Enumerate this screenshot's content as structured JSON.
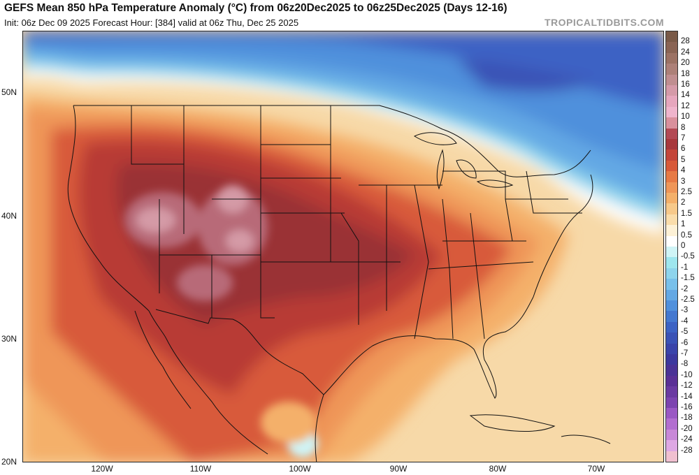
{
  "header": {
    "title": "GEFS Mean 850 hPa Temperature Anomaly (°C) from 06z20Dec2025 to 06z25Dec2025 (Days 12-16)",
    "subtitle": "Init: 06z Dec 09 2025   Forecast Hour: [384]   valid at 06z Thu, Dec 25 2025",
    "brand": "TROPICALTIDBITS.COM"
  },
  "axes": {
    "lat_labels": [
      "50N",
      "40N",
      "30N",
      "20N"
    ],
    "lon_labels": [
      "120W",
      "110W",
      "100W",
      "90W",
      "80W",
      "70W"
    ]
  },
  "colorbar": {
    "labels": [
      "28",
      "24",
      "20",
      "18",
      "16",
      "14",
      "12",
      "10",
      "8",
      "7",
      "6",
      "5",
      "4",
      "3",
      "2.5",
      "2",
      "1.5",
      "1",
      "0.5",
      "0",
      "-0.5",
      "-1",
      "-1.5",
      "-2",
      "-2.5",
      "-3",
      "-4",
      "-5",
      "-6",
      "-7",
      "-8",
      "-10",
      "-12",
      "-14",
      "-16",
      "-18",
      "-20",
      "-24",
      "-28"
    ],
    "colors": [
      "#7a5a48",
      "#8a6454",
      "#9c7264",
      "#ad8078",
      "#c08e90",
      "#d59aa8",
      "#e6a6bd",
      "#efb4cc",
      "#d9909c",
      "#b34a54",
      "#a8383c",
      "#c4463a",
      "#d85a3a",
      "#e77a45",
      "#ef9658",
      "#f4b06a",
      "#f7c98a",
      "#faddab",
      "#fdf1d6",
      "#ffffff",
      "#cff4f6",
      "#9ee6ee",
      "#8ed4ec",
      "#78c0ea",
      "#64a8e4",
      "#5090dc",
      "#4478d0",
      "#3c62c4",
      "#3a52b6",
      "#3a44aa",
      "#3c389e",
      "#4a3296",
      "#5a3096",
      "#6a3aa2",
      "#7c44b0",
      "#9a58c4",
      "#b26ed0",
      "#c888d8",
      "#dea8e4"
    ]
  },
  "map_legend": {
    "colors": {
      "deep_blue": "#3a52b6",
      "mid_blue": "#5090dc",
      "light_blue": "#8ed4ec",
      "near_zero": "#ffffff",
      "pale_yellow": "#faddab",
      "orange": "#ef9658",
      "red_orange": "#d85a3a",
      "red": "#b83a36",
      "dark_red": "#9a3034",
      "mauve": "#b86a78",
      "pink": "#d49aa6"
    }
  }
}
